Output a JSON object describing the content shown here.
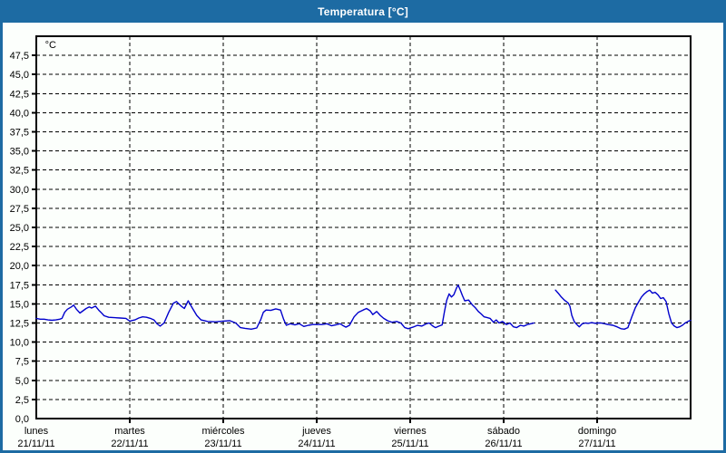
{
  "window": {
    "title": "Temperatura [°C]"
  },
  "colors": {
    "titlebar_bg": "#1d6ba3",
    "window_border": "#1d6ba3",
    "content_bg": "#fcfffc",
    "axis": "#000000",
    "line": "#0000cc"
  },
  "chart_data": {
    "type": "line",
    "title": "Temperatura [°C]",
    "ylabel": "°C",
    "unit_label": "°C",
    "ylim": [
      0,
      50
    ],
    "y_tick_step": 2.5,
    "y_tick_first": 2.5,
    "y_tick_last": 47.5,
    "decimal_separator": ",",
    "grid": true,
    "legend": "none",
    "x_hours_total": 168,
    "x_days": [
      {
        "name": "lunes",
        "date": "21/11/11"
      },
      {
        "name": "martes",
        "date": "22/11/11"
      },
      {
        "name": "miércoles",
        "date": "23/11/11"
      },
      {
        "name": "jueves",
        "date": "24/11/11"
      },
      {
        "name": "viernes",
        "date": "25/11/11"
      },
      {
        "name": "sábado",
        "date": "26/11/11"
      },
      {
        "name": "domingo",
        "date": "27/11/11"
      }
    ],
    "series": [
      {
        "name": "Temperatura",
        "color": "#0000cc",
        "segments": [
          [
            [
              0,
              13.1
            ],
            [
              1,
              13.0
            ],
            [
              2,
              13.0
            ],
            [
              3,
              12.9
            ],
            [
              4,
              12.85
            ],
            [
              5,
              12.9
            ],
            [
              6,
              13.0
            ],
            [
              6.6,
              13.1
            ],
            [
              7.3,
              13.9
            ],
            [
              8,
              14.3
            ],
            [
              9,
              14.6
            ],
            [
              9.6,
              14.85
            ],
            [
              10.3,
              14.3
            ],
            [
              11.2,
              13.8
            ],
            [
              12,
              14.1
            ],
            [
              12.8,
              14.4
            ],
            [
              13.6,
              14.6
            ],
            [
              14.2,
              14.45
            ],
            [
              15.2,
              14.7
            ],
            [
              16,
              14.2
            ],
            [
              16.6,
              13.9
            ],
            [
              17.4,
              13.45
            ],
            [
              18.6,
              13.25
            ],
            [
              20,
              13.2
            ],
            [
              21.5,
              13.15
            ],
            [
              23,
              13.1
            ],
            [
              24,
              12.75
            ],
            [
              25.3,
              12.9
            ],
            [
              26.3,
              13.15
            ],
            [
              27.3,
              13.3
            ],
            [
              28.3,
              13.25
            ],
            [
              29.3,
              13.1
            ],
            [
              30.2,
              12.9
            ],
            [
              31,
              12.4
            ],
            [
              31.8,
              12.1
            ],
            [
              32.8,
              12.5
            ],
            [
              34,
              13.9
            ],
            [
              35.2,
              15.1
            ],
            [
              36,
              15.3
            ],
            [
              37.2,
              14.7
            ],
            [
              38,
              14.4
            ],
            [
              39,
              15.4
            ],
            [
              40,
              14.5
            ],
            [
              41.2,
              13.5
            ],
            [
              42.3,
              12.9
            ],
            [
              44,
              12.7
            ],
            [
              46,
              12.65
            ],
            [
              48,
              12.75
            ],
            [
              49.7,
              12.8
            ],
            [
              51.2,
              12.5
            ],
            [
              52.4,
              11.9
            ],
            [
              53.6,
              11.8
            ],
            [
              55.2,
              11.7
            ],
            [
              56.6,
              11.85
            ],
            [
              57.6,
              12.9
            ],
            [
              58.3,
              13.9
            ],
            [
              59,
              14.2
            ],
            [
              60.2,
              14.15
            ],
            [
              61.5,
              14.35
            ],
            [
              62.7,
              14.2
            ],
            [
              63.5,
              13.0
            ],
            [
              64.2,
              12.2
            ],
            [
              65.2,
              12.4
            ],
            [
              66.4,
              12.25
            ],
            [
              67.5,
              12.4
            ],
            [
              68.7,
              12.05
            ],
            [
              69.9,
              12.2
            ],
            [
              71,
              12.3
            ],
            [
              72,
              12.3
            ],
            [
              73.4,
              12.3
            ],
            [
              74.6,
              12.4
            ],
            [
              75.8,
              12.15
            ],
            [
              76.9,
              12.25
            ],
            [
              78,
              12.4
            ],
            [
              78.8,
              12.15
            ],
            [
              79.5,
              11.95
            ],
            [
              80.4,
              12.2
            ],
            [
              81.6,
              13.3
            ],
            [
              82.7,
              13.9
            ],
            [
              83.9,
              14.2
            ],
            [
              84.8,
              14.4
            ],
            [
              85.7,
              14.1
            ],
            [
              86.4,
              13.6
            ],
            [
              87.4,
              14.0
            ],
            [
              88.3,
              13.5
            ],
            [
              89.2,
              13.1
            ],
            [
              90.2,
              12.8
            ],
            [
              91.3,
              12.6
            ],
            [
              92.5,
              12.7
            ],
            [
              93.6,
              12.5
            ],
            [
              94.6,
              11.9
            ],
            [
              95.5,
              11.75
            ],
            [
              96,
              11.85
            ],
            [
              96.7,
              11.95
            ],
            [
              97.9,
              12.2
            ],
            [
              99,
              12.1
            ],
            [
              100.2,
              12.4
            ],
            [
              100.9,
              12.5
            ],
            [
              101.8,
              12.1
            ],
            [
              102.5,
              11.9
            ],
            [
              103.4,
              12.1
            ],
            [
              104.2,
              12.25
            ],
            [
              104.8,
              14.0
            ],
            [
              105.4,
              15.5
            ],
            [
              106,
              16.3
            ],
            [
              106.6,
              15.9
            ],
            [
              107.2,
              16.2
            ],
            [
              107.9,
              17.1
            ],
            [
              108.3,
              17.45
            ],
            [
              108.8,
              16.9
            ],
            [
              109.4,
              16.1
            ],
            [
              110,
              15.4
            ],
            [
              111,
              15.5
            ],
            [
              111.9,
              14.9
            ],
            [
              112.7,
              14.5
            ],
            [
              113.5,
              14.0
            ],
            [
              114.2,
              13.7
            ],
            [
              115,
              13.3
            ],
            [
              115.8,
              13.2
            ],
            [
              116.5,
              13.1
            ],
            [
              117.4,
              12.6
            ],
            [
              118.1,
              12.9
            ],
            [
              118.8,
              12.5
            ],
            [
              119.7,
              12.7
            ],
            [
              120.7,
              12.3
            ],
            [
              121.6,
              12.5
            ],
            [
              122.5,
              12.0
            ],
            [
              123.3,
              11.9
            ],
            [
              124.3,
              12.2
            ],
            [
              125.2,
              12.1
            ],
            [
              126.1,
              12.3
            ],
            [
              127,
              12.4
            ],
            [
              127.8,
              12.5
            ]
          ],
          [
            [
              133.3,
              16.8
            ],
            [
              134,
              16.4
            ],
            [
              134.8,
              15.9
            ],
            [
              135.6,
              15.5
            ],
            [
              136.1,
              15.3
            ],
            [
              136.6,
              15.1
            ],
            [
              137,
              14.7
            ],
            [
              137.5,
              13.5
            ],
            [
              138.1,
              12.7
            ],
            [
              138.6,
              12.4
            ],
            [
              139,
              12.2
            ],
            [
              139.4,
              12.0
            ],
            [
              140.2,
              12.4
            ],
            [
              141,
              12.5
            ],
            [
              141.7,
              12.45
            ],
            [
              142.6,
              12.55
            ],
            [
              143.6,
              12.45
            ],
            [
              144,
              12.5
            ],
            [
              145,
              12.5
            ],
            [
              145.9,
              12.4
            ],
            [
              146.8,
              12.3
            ],
            [
              148,
              12.2
            ],
            [
              149.1,
              12.0
            ],
            [
              150.1,
              11.75
            ],
            [
              151,
              11.7
            ],
            [
              151.9,
              11.9
            ],
            [
              152.9,
              13.3
            ],
            [
              153.8,
              14.5
            ],
            [
              154.7,
              15.3
            ],
            [
              155.4,
              15.9
            ],
            [
              156.1,
              16.3
            ],
            [
              156.8,
              16.6
            ],
            [
              157.5,
              16.8
            ],
            [
              158.2,
              16.4
            ],
            [
              158.9,
              16.5
            ],
            [
              159.6,
              16.2
            ],
            [
              160.3,
              15.7
            ],
            [
              161,
              15.8
            ],
            [
              161.7,
              15.3
            ],
            [
              162.4,
              13.7
            ],
            [
              163.1,
              12.5
            ],
            [
              163.8,
              12.1
            ],
            [
              164.5,
              11.9
            ],
            [
              165.2,
              12.0
            ],
            [
              165.9,
              12.2
            ],
            [
              166.6,
              12.5
            ],
            [
              167.3,
              12.7
            ],
            [
              168,
              12.85
            ]
          ]
        ]
      }
    ]
  }
}
